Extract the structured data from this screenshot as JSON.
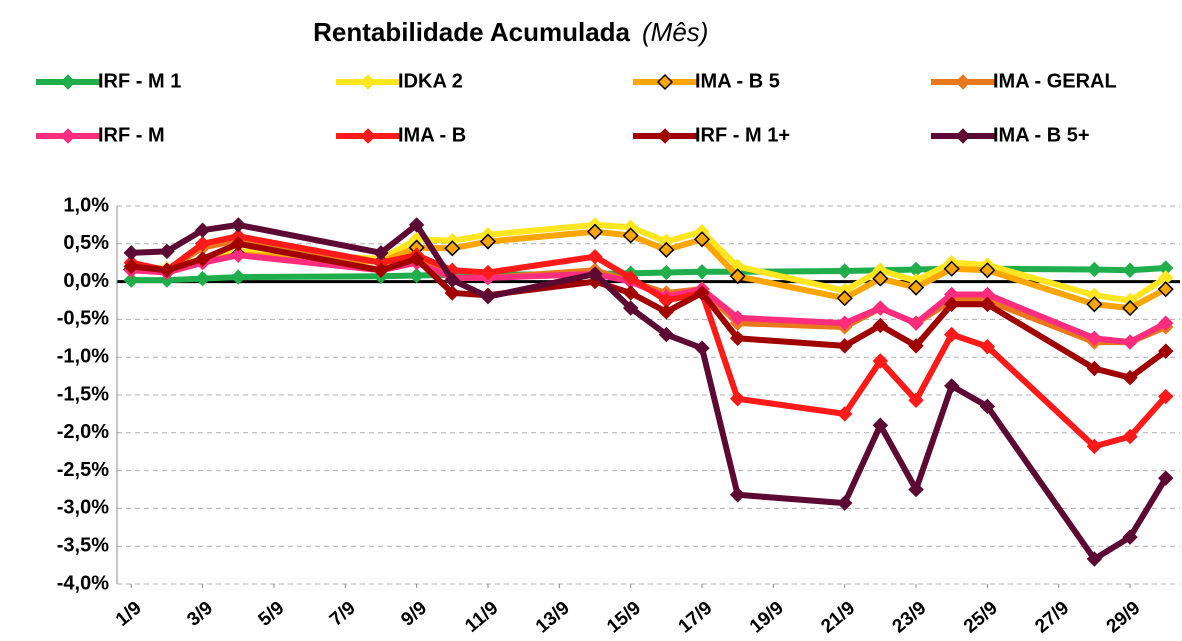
{
  "chart_data": {
    "type": "line",
    "title": "Rentabilidade Acumulada",
    "subtitle": "(Mês)",
    "x": [
      1,
      2,
      3,
      4,
      8,
      9,
      10,
      11,
      14,
      15,
      16,
      17,
      18,
      21,
      22,
      23,
      24,
      25,
      28,
      29,
      30
    ],
    "xlim": [
      0.6,
      30.4
    ],
    "xticks": [
      {
        "value": 1,
        "label": "1/9"
      },
      {
        "value": 3,
        "label": "3/9"
      },
      {
        "value": 5,
        "label": "5/9"
      },
      {
        "value": 7,
        "label": "7/9"
      },
      {
        "value": 9,
        "label": "9/9"
      },
      {
        "value": 11,
        "label": "11/9"
      },
      {
        "value": 13,
        "label": "13/9"
      },
      {
        "value": 15,
        "label": "15/9"
      },
      {
        "value": 17,
        "label": "17/9"
      },
      {
        "value": 19,
        "label": "19/9"
      },
      {
        "value": 21,
        "label": "21/9"
      },
      {
        "value": 23,
        "label": "23/9"
      },
      {
        "value": 25,
        "label": "25/9"
      },
      {
        "value": 27,
        "label": "27/9"
      },
      {
        "value": 29,
        "label": "29/9"
      }
    ],
    "ylim": [
      -4,
      1
    ],
    "yticks": [
      {
        "value": -4,
        "label": "-4,0%"
      },
      {
        "value": -3.5,
        "label": "-3,5%"
      },
      {
        "value": -3,
        "label": "-3,0%"
      },
      {
        "value": -2.5,
        "label": "-2,5%"
      },
      {
        "value": -2,
        "label": "-2,0%"
      },
      {
        "value": -1.5,
        "label": "-1,5%"
      },
      {
        "value": -1,
        "label": "-1,0%"
      },
      {
        "value": -0.5,
        "label": "-0,5%"
      },
      {
        "value": 0,
        "label": "0,0%"
      },
      {
        "value": 0.5,
        "label": "0,5%"
      },
      {
        "value": 1,
        "label": "1,0%"
      }
    ],
    "grid": true,
    "series": [
      {
        "name": "IRF - M 1",
        "color": "#1fae4b",
        "marker": "diamond",
        "values": [
          0.02,
          0.02,
          0.04,
          0.06,
          0.07,
          0.08,
          0.09,
          0.09,
          0.1,
          0.11,
          0.12,
          0.13,
          0.13,
          0.14,
          0.15,
          0.16,
          0.17,
          0.17,
          0.16,
          0.15,
          0.18
        ]
      },
      {
        "name": "IDKA 2",
        "color": "#ffe620",
        "marker": "diamond",
        "values": [
          0.2,
          0.17,
          0.3,
          0.4,
          0.3,
          0.56,
          0.54,
          0.62,
          0.75,
          0.72,
          0.53,
          0.66,
          0.2,
          -0.12,
          0.15,
          0.01,
          0.25,
          0.22,
          -0.18,
          -0.25,
          0.05
        ]
      },
      {
        "name": "IMA - B 5",
        "color": "#ffa500",
        "marker": "diamond-open",
        "values": [
          0.16,
          0.13,
          0.26,
          0.36,
          0.26,
          0.45,
          0.44,
          0.53,
          0.66,
          0.61,
          0.42,
          0.56,
          0.07,
          -0.22,
          0.04,
          -0.08,
          0.17,
          0.15,
          -0.3,
          -0.35,
          -0.1
        ]
      },
      {
        "name": "IMA - GERAL",
        "color": "#e8781c",
        "marker": "diamond",
        "values": [
          0.2,
          0.15,
          0.45,
          0.55,
          0.25,
          0.3,
          0.05,
          0.05,
          0.15,
          0.0,
          -0.15,
          -0.1,
          -0.55,
          -0.6,
          -0.35,
          -0.55,
          -0.25,
          -0.25,
          -0.8,
          -0.8,
          -0.6
        ]
      },
      {
        "name": "IRF - M",
        "color": "#ff2d7d",
        "marker": "diamond",
        "values": [
          0.15,
          0.12,
          0.25,
          0.35,
          0.15,
          0.25,
          0.05,
          0.05,
          0.1,
          0.0,
          -0.2,
          -0.1,
          -0.48,
          -0.55,
          -0.35,
          -0.55,
          -0.17,
          -0.17,
          -0.75,
          -0.8,
          -0.55
        ]
      },
      {
        "name": "IMA - B",
        "color": "#ff1a1a",
        "marker": "diamond",
        "values": [
          0.25,
          0.15,
          0.5,
          0.6,
          0.25,
          0.35,
          0.15,
          0.12,
          0.33,
          0.05,
          -0.25,
          -0.15,
          -1.55,
          -1.75,
          -1.05,
          -1.57,
          -0.7,
          -0.86,
          -2.18,
          -2.05,
          -1.52
        ]
      },
      {
        "name": "IRF - M 1+",
        "color": "#a00000",
        "marker": "diamond",
        "values": [
          0.2,
          0.15,
          0.3,
          0.5,
          0.15,
          0.3,
          -0.15,
          -0.18,
          0.0,
          -0.15,
          -0.4,
          -0.15,
          -0.75,
          -0.85,
          -0.58,
          -0.85,
          -0.3,
          -0.3,
          -1.15,
          -1.27,
          -0.92
        ]
      },
      {
        "name": "IMA - B 5+",
        "color": "#5c0a33",
        "marker": "diamond",
        "values": [
          0.38,
          0.4,
          0.68,
          0.75,
          0.38,
          0.75,
          0.02,
          -0.2,
          0.1,
          -0.35,
          -0.7,
          -0.88,
          -2.82,
          -2.93,
          -1.9,
          -2.75,
          -1.38,
          -1.65,
          -3.67,
          -3.38,
          -2.6
        ]
      }
    ]
  }
}
